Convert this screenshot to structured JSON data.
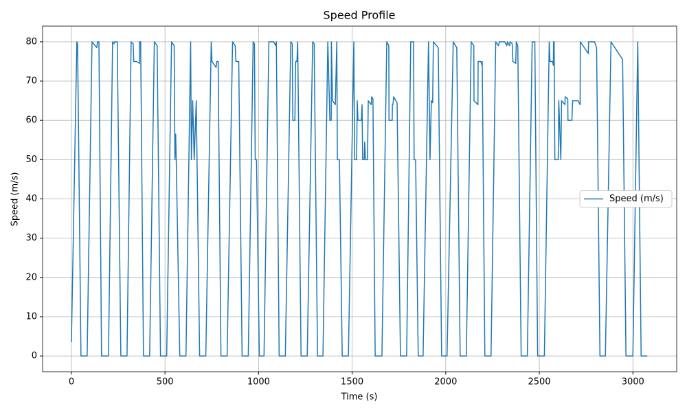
{
  "chart_data": {
    "type": "line",
    "title": "Speed Profile",
    "x_label": "Time (s)",
    "y_label": "Speed (m/s)",
    "x": [
      0,
      29,
      33,
      51,
      84,
      110,
      136,
      139,
      147,
      161,
      198,
      220,
      227,
      231,
      245,
      264,
      297,
      319,
      330,
      333,
      348,
      363,
      363,
      370,
      385,
      418,
      443,
      458,
      476,
      509,
      535,
      549,
      553,
      557,
      560,
      579,
      612,
      637,
      641,
      648,
      656,
      667,
      685,
      718,
      747,
      751,
      773,
      777,
      784,
      799,
      832,
      861,
      875,
      879,
      894,
      912,
      945,
      971,
      978,
      982,
      989,
      1004,
      1029,
      1055,
      1081,
      1092,
      1095,
      1110,
      1143,
      1172,
      1180,
      1183,
      1194,
      1198,
      1205,
      1209,
      1227,
      1260,
      1289,
      1297,
      1315,
      1344,
      1370,
      1381,
      1388,
      1389,
      1395,
      1410,
      1418,
      1421,
      1432,
      1447,
      1480,
      1509,
      1513,
      1524,
      1527,
      1531,
      1549,
      1553,
      1556,
      1564,
      1567,
      1571,
      1582,
      1586,
      1602,
      1604,
      1611,
      1623,
      1659,
      1685,
      1696,
      1697,
      1714,
      1715,
      1718,
      1722,
      1740,
      1758,
      1791,
      1813,
      1828,
      1831,
      1839,
      1853,
      1879,
      1908,
      1916,
      1923,
      1930,
      1934,
      1960,
      1978,
      2007,
      2040,
      2059,
      2077,
      2110,
      2136,
      2150,
      2151,
      2172,
      2173,
      2187,
      2194,
      2195,
      2209,
      2242,
      2267,
      2282,
      2286,
      2315,
      2326,
      2330,
      2341,
      2344,
      2355,
      2359,
      2374,
      2377,
      2385,
      2403,
      2436,
      2462,
      2476,
      2491,
      2527,
      2553,
      2557,
      2571,
      2575,
      2576,
      2579,
      2583,
      2601,
      2604,
      2615,
      2619,
      2637,
      2638,
      2652,
      2653,
      2674,
      2678,
      2707,
      2718,
      2719,
      2762,
      2763,
      2795,
      2806,
      2824,
      2853,
      2883,
      2945,
      2963,
      3000,
      3026,
      3044,
      3077
    ],
    "series": [
      {
        "name": "Speed (m/s)",
        "color": "#1f77b4",
        "values": [
          3.5,
          80,
          79.5,
          0,
          0,
          80,
          78.5,
          80,
          80,
          0,
          0,
          80,
          79.5,
          80,
          80,
          0,
          0,
          80,
          79.5,
          75,
          75,
          74.5,
          80,
          80,
          0,
          0,
          80,
          79,
          0,
          0,
          80,
          79,
          50,
          56.5,
          50,
          0,
          0,
          80,
          50,
          65,
          50,
          65,
          0,
          0,
          80,
          75,
          73.5,
          75,
          75,
          0,
          0,
          80,
          79,
          75,
          75,
          0,
          0,
          80,
          79.5,
          50,
          50,
          0,
          0,
          80,
          80,
          79,
          80,
          0,
          0,
          80,
          79.5,
          60,
          60,
          75,
          75,
          80,
          0,
          0,
          80,
          79.5,
          0,
          0,
          80,
          60,
          60,
          80,
          65,
          64,
          80,
          50,
          50,
          0,
          0,
          80,
          50,
          50,
          65,
          60,
          60,
          64,
          50,
          50,
          54.5,
          50,
          50,
          65,
          64,
          66,
          65.5,
          0,
          0,
          80,
          79,
          60,
          60,
          64,
          64,
          66,
          64.5,
          0,
          0,
          80,
          80,
          50,
          50,
          0,
          0,
          80,
          50,
          65,
          64.5,
          80,
          78.5,
          0,
          0,
          80,
          78.5,
          0,
          0,
          80,
          79,
          65,
          64,
          75,
          75,
          74,
          75,
          0,
          0,
          80,
          79,
          80,
          80,
          79,
          80,
          79,
          80,
          79.5,
          75,
          74.5,
          80,
          79,
          0,
          0,
          80,
          80,
          0,
          0,
          80,
          75,
          75,
          74,
          80,
          80,
          50,
          50,
          65,
          50,
          65,
          64,
          66,
          65.5,
          60,
          60,
          65,
          65,
          64,
          80,
          77,
          80,
          80,
          78.5,
          0,
          0,
          80,
          75.5,
          0,
          0,
          80,
          0,
          0
        ]
      }
    ],
    "xlim": [
      -154,
      3234
    ],
    "ylim": [
      -4,
      84
    ],
    "xticks": [
      0,
      500,
      1000,
      1500,
      2000,
      2500,
      3000
    ],
    "yticks": [
      0,
      10,
      20,
      30,
      40,
      50,
      60,
      70,
      80
    ],
    "grid": true,
    "legend": "center right"
  }
}
